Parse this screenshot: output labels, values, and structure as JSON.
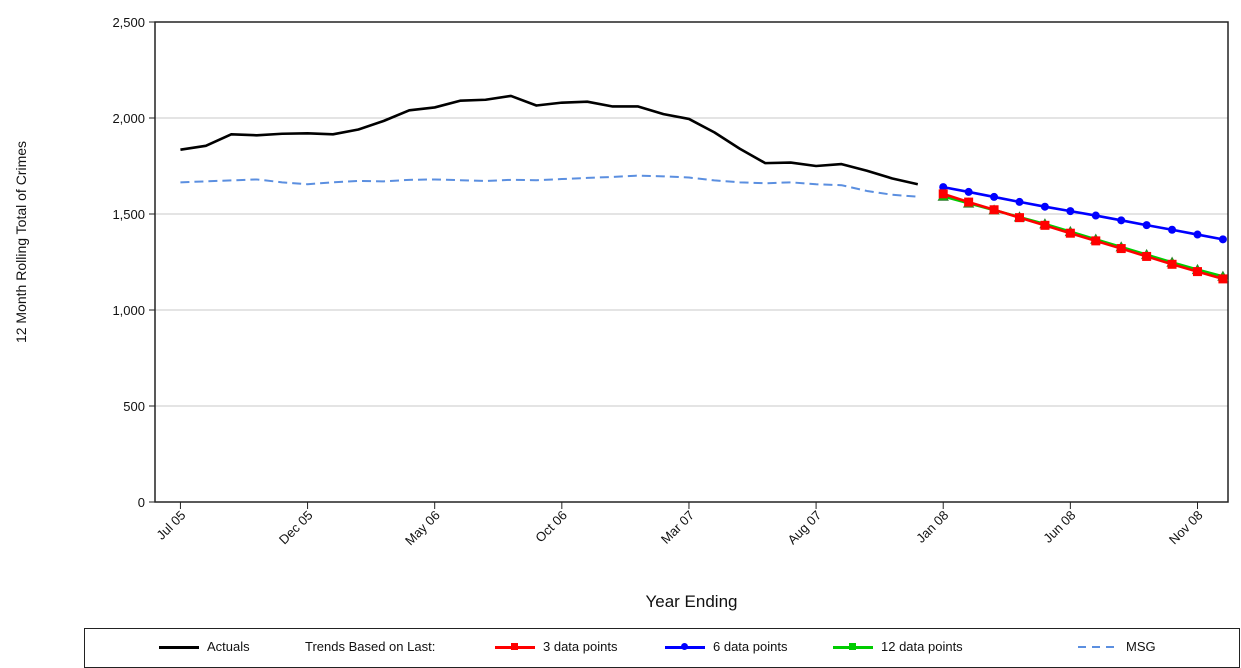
{
  "chart_data": {
    "type": "line",
    "xlabel": "Year Ending",
    "ylabel": "12 Month Rolling Total of Crimes",
    "ylim": [
      0,
      2500
    ],
    "yticks": [
      0,
      500,
      1000,
      1500,
      2000,
      2500
    ],
    "ytick_labels": [
      "0",
      "500",
      "1,000",
      "1,500",
      "2,000",
      "2,500"
    ],
    "xtick_labels": [
      "Jul 05",
      "Dec 05",
      "May 06",
      "Oct 06",
      "Mar 07",
      "Aug 07",
      "Jan 08",
      "Jun 08",
      "Nov 08"
    ],
    "xtick_month_index": [
      0,
      5,
      10,
      15,
      20,
      25,
      30,
      35,
      40
    ],
    "x_month_range": [
      -1,
      41.2
    ],
    "grid": true,
    "legend_position": "bottom",
    "legend_prefix": "Trends Based on Last:",
    "series": [
      {
        "name": "Actuals",
        "color": "#000000",
        "style": "solid",
        "start_month_index": 0,
        "values": [
          1835,
          1855,
          1915,
          1910,
          1918,
          1920,
          1915,
          1940,
          1985,
          2040,
          2055,
          2090,
          2095,
          2115,
          2065,
          2080,
          2085,
          2060,
          2060,
          2020,
          1995,
          1925,
          1840,
          1765,
          1768,
          1750,
          1760,
          1725,
          1685,
          1655
        ]
      },
      {
        "name": "MSG",
        "color": "#5b8fe0",
        "style": "dashed",
        "start_month_index": 0,
        "values": [
          1665,
          1670,
          1675,
          1680,
          1665,
          1655,
          1665,
          1672,
          1670,
          1678,
          1680,
          1676,
          1672,
          1678,
          1676,
          1682,
          1688,
          1693,
          1700,
          1696,
          1690,
          1675,
          1665,
          1660,
          1665,
          1655,
          1650,
          1620,
          1600,
          1590
        ]
      },
      {
        "name": "3 data points",
        "color": "#ff0000",
        "style": "solid",
        "marker": "square",
        "start_month_index": 30,
        "values": [
          1605,
          1562,
          1522,
          1481,
          1441,
          1400,
          1360,
          1320,
          1279,
          1238,
          1200,
          1162
        ]
      },
      {
        "name": "6 data points",
        "color": "#0000ff",
        "style": "solid",
        "marker": "circle",
        "start_month_index": 30,
        "values": [
          1640,
          1615,
          1589,
          1563,
          1538,
          1515,
          1492,
          1467,
          1442,
          1418,
          1393,
          1368
        ]
      },
      {
        "name": "12 data points",
        "color": "#00cc00",
        "style": "solid",
        "marker": "triangle",
        "start_month_index": 30,
        "values": [
          1592,
          1556,
          1520,
          1484,
          1448,
          1408,
          1368,
          1328,
          1288,
          1248,
          1210,
          1175
        ]
      }
    ]
  }
}
